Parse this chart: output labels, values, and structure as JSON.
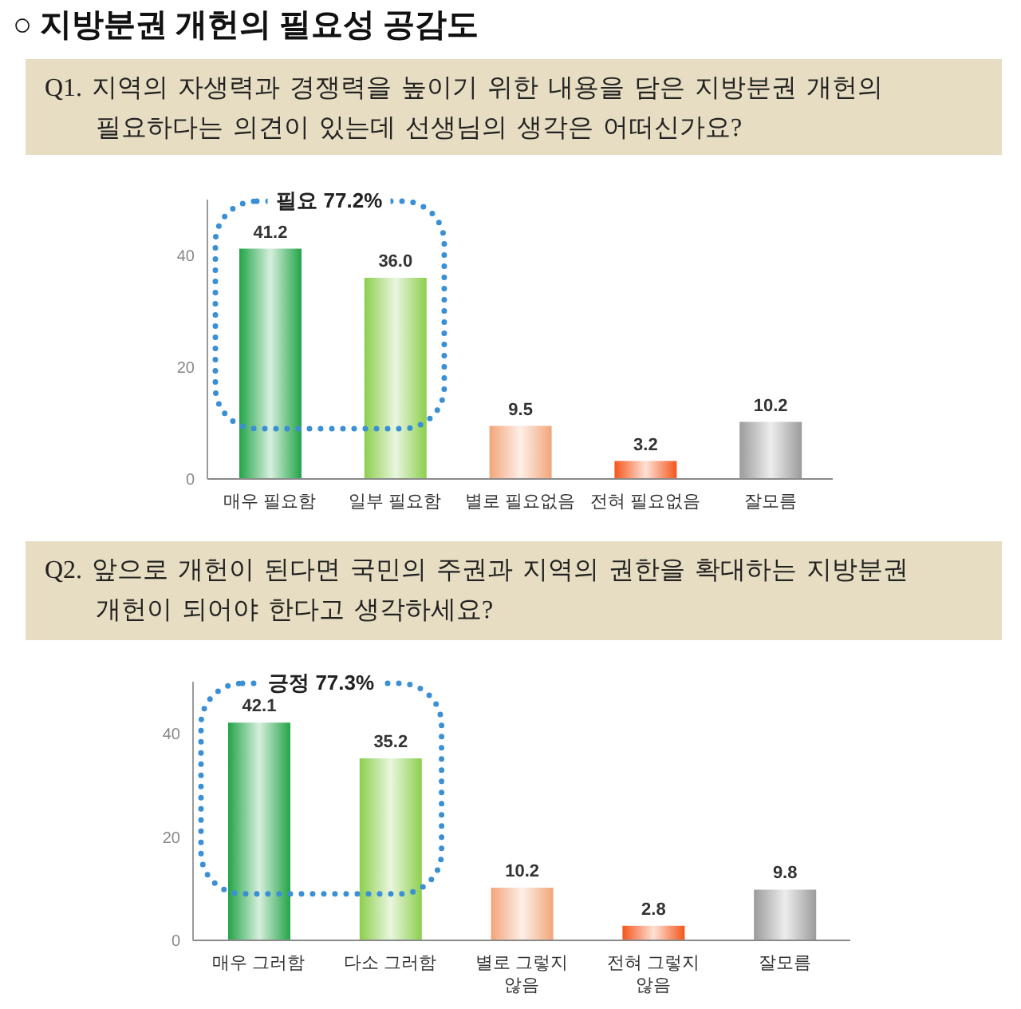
{
  "chart_data": [
    {
      "type": "bar",
      "title": "○ 지방분권 개헌의 필요성 공감도",
      "subtitle": "Q1. 지역의 자생력과 경쟁력을 높이기 위한 내용을 담은 지방분권 개헌의 필요하다는 의견이 있는데 선생님의 생각은 어떠신가요?",
      "categories": [
        "매우 필요함",
        "일부 필요함",
        "별로 필요없음",
        "전혀 필요없음",
        "잘모름"
      ],
      "values": [
        41.2,
        36.0,
        9.5,
        3.2,
        10.2
      ],
      "value_labels": [
        "41.2",
        "36.0",
        "9.5",
        "3.2",
        "10.2"
      ],
      "colors": [
        "#22a447",
        "#8ccf4d",
        "#f2a57a",
        "#f4561c",
        "#9b9b9b"
      ],
      "ylim": [
        0,
        50
      ],
      "yticks": [
        0,
        20,
        40
      ],
      "annotations": [
        "필요 77.2%"
      ]
    },
    {
      "type": "bar",
      "subtitle": "Q2. 앞으로 개헌이 된다면 국민의 주권과 지역의 권한을 확대하는 지방분권 개헌이 되어야 한다고 생각하세요?",
      "categories": [
        "매우 그러함",
        "다소 그러함",
        "별로 그렇지 않음",
        "전혀 그렇지 않음",
        "잘모름"
      ],
      "values": [
        42.1,
        35.2,
        10.2,
        2.8,
        9.8
      ],
      "value_labels": [
        "42.1",
        "35.2",
        "10.2",
        "2.8",
        "9.8"
      ],
      "colors": [
        "#22a447",
        "#8ccf4d",
        "#f2a57a",
        "#f4561c",
        "#9b9b9b"
      ],
      "ylim": [
        0,
        50
      ],
      "yticks": [
        0,
        20,
        40
      ],
      "annotations": [
        "긍정 77.3%"
      ]
    }
  ]
}
